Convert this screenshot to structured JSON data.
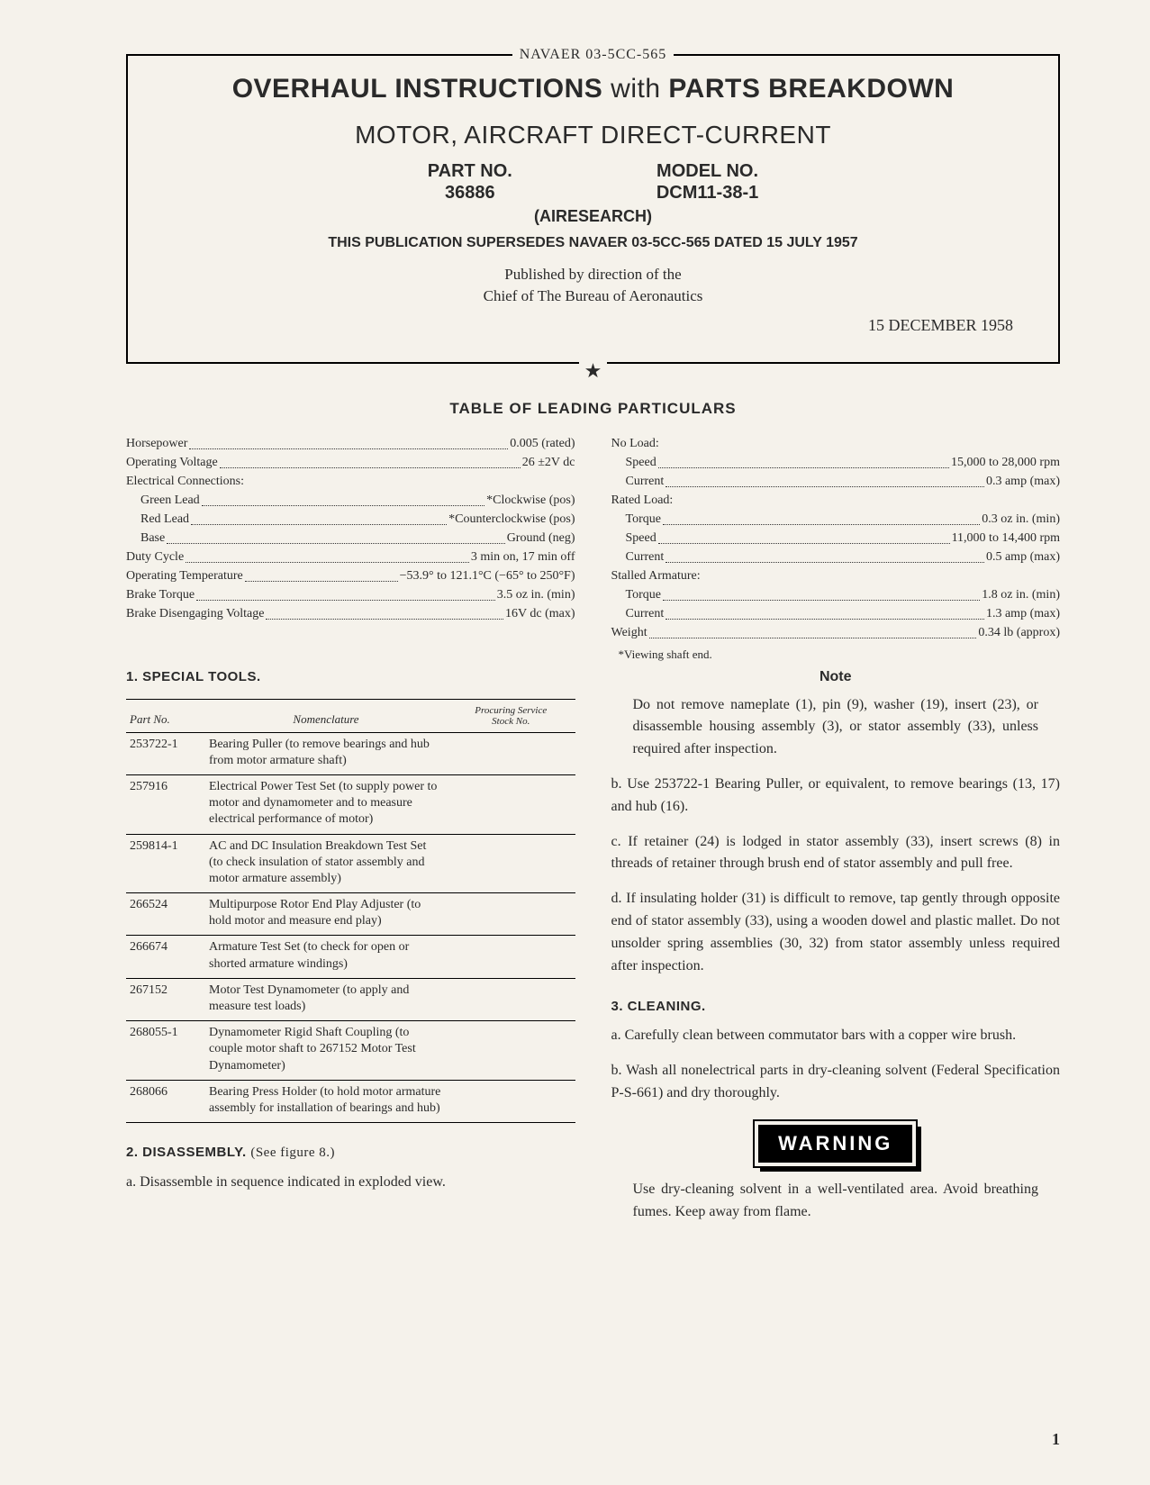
{
  "doc_id": "NAVAER 03-5CC-565",
  "title_a": "OVERHAUL INSTRUCTIONS",
  "title_with": "with",
  "title_b": "PARTS BREAKDOWN",
  "subtitle": "MOTOR, AIRCRAFT DIRECT-CURRENT",
  "part_no_label": "PART NO.",
  "part_no": "36886",
  "model_no_label": "MODEL NO.",
  "model_no": "DCM11-38-1",
  "manufacturer": "(AIRESEARCH)",
  "supersedes": "THIS PUBLICATION SUPERSEDES NAVAER 03-5CC-565 DATED 15 JULY 1957",
  "published1": "Published by direction of the",
  "published2": "Chief of The Bureau of Aeronautics",
  "date": "15 DECEMBER 1958",
  "star": "★",
  "lp_heading": "TABLE OF LEADING PARTICULARS",
  "lp_left": [
    {
      "label": "Horsepower",
      "value": "0.005  (rated)",
      "sub": 0
    },
    {
      "label": "Operating Voltage",
      "value": "26 ±2V dc",
      "sub": 0
    },
    {
      "label": "Electrical Connections:",
      "value": "",
      "sub": 0,
      "nodots": true
    },
    {
      "label": "Green Lead",
      "value": "*Clockwise (pos)",
      "sub": 1
    },
    {
      "label": "Red Lead",
      "value": "*Counterclockwise (pos)",
      "sub": 1
    },
    {
      "label": "Base",
      "value": "Ground (neg)",
      "sub": 1
    },
    {
      "label": "Duty Cycle",
      "value": "3 min on, 17 min off",
      "sub": 0
    },
    {
      "label": "Operating Temperature",
      "value": "−53.9° to 121.1°C (−65° to 250°F)",
      "sub": 0
    },
    {
      "label": "Brake Torque",
      "value": "3.5 oz in. (min)",
      "sub": 0
    },
    {
      "label": "Brake Disengaging Voltage",
      "value": "16V dc (max)",
      "sub": 0
    }
  ],
  "lp_right": [
    {
      "label": "No Load:",
      "value": "",
      "sub": 0,
      "nodots": true
    },
    {
      "label": "Speed",
      "value": "15,000 to 28,000 rpm",
      "sub": 1
    },
    {
      "label": "Current",
      "value": "0.3 amp (max)",
      "sub": 1
    },
    {
      "label": "Rated Load:",
      "value": "",
      "sub": 0,
      "nodots": true
    },
    {
      "label": "Torque",
      "value": "0.3 oz in. (min)",
      "sub": 1
    },
    {
      "label": "Speed",
      "value": "11,000 to 14,400 rpm",
      "sub": 1
    },
    {
      "label": "Current",
      "value": "0.5 amp (max)",
      "sub": 1
    },
    {
      "label": "Stalled Armature:",
      "value": "",
      "sub": 0,
      "nodots": true
    },
    {
      "label": "Torque",
      "value": "1.8 oz in. (min)",
      "sub": 1
    },
    {
      "label": "Current",
      "value": "1.3 amp (max)",
      "sub": 1
    },
    {
      "label": "Weight",
      "value": "0.34 lb (approx)",
      "sub": 0
    }
  ],
  "lp_footnote": "*Viewing shaft end.",
  "tools_heading": "1. SPECIAL TOOLS.",
  "tools_cols": [
    "Part No.",
    "Nomenclature",
    "Procuring Service\nStock No."
  ],
  "tools": [
    {
      "pn": "253722-1",
      "nom": "Bearing Puller (to remove bearings and hub from motor armature shaft)"
    },
    {
      "pn": "257916",
      "nom": "Electrical Power Test Set (to supply power to motor and dynamometer and to measure electrical performance of motor)"
    },
    {
      "pn": "259814-1",
      "nom": "AC and DC Insulation Breakdown Test Set (to check insulation of stator assembly and motor armature assembly)"
    },
    {
      "pn": "266524",
      "nom": "Multipurpose Rotor End Play Adjuster (to hold motor and measure end play)"
    },
    {
      "pn": "266674",
      "nom": "Armature Test Set (to check for open or shorted armature windings)"
    },
    {
      "pn": "267152",
      "nom": "Motor Test Dynamometer (to apply and measure test loads)"
    },
    {
      "pn": "268055-1",
      "nom": "Dynamometer Rigid Shaft Coupling (to couple motor shaft to 267152 Motor Test Dynamometer)"
    },
    {
      "pn": "268066",
      "nom": "Bearing Press Holder (to hold motor armature assembly for installation of bearings and hub)"
    }
  ],
  "s2_heading": "2. DISASSEMBLY.",
  "s2_ref": "(See figure 8.)",
  "s2_a": "a. Disassemble in sequence indicated in exploded view.",
  "note_head": "Note",
  "note_body": "Do not remove nameplate (1), pin (9), washer (19), insert (23), or disassemble housing assembly (3), or stator assembly (33), unless required after inspection.",
  "s2_b": "b. Use 253722-1 Bearing Puller, or equivalent, to remove bearings (13, 17) and hub (16).",
  "s2_c": "c. If retainer (24) is lodged in stator assembly (33), insert screws (8) in threads of retainer through brush end of stator assembly and pull free.",
  "s2_d": "d. If insulating holder (31) is difficult to remove, tap gently through opposite end of stator assembly (33), using a wooden dowel and plastic mallet. Do not unsolder spring assemblies (30, 32) from stator assembly unless required after inspection.",
  "s3_heading": "3. CLEANING.",
  "s3_a": "a. Carefully clean between commutator bars with a copper wire brush.",
  "s3_b": "b. Wash all nonelectrical parts in dry-cleaning solvent (Federal Specification P-S-661) and dry thoroughly.",
  "warning_label": "WARNING",
  "warning_text": "Use dry-cleaning solvent in a well-ventilated area. Avoid breathing fumes. Keep away from flame.",
  "page_number": "1"
}
